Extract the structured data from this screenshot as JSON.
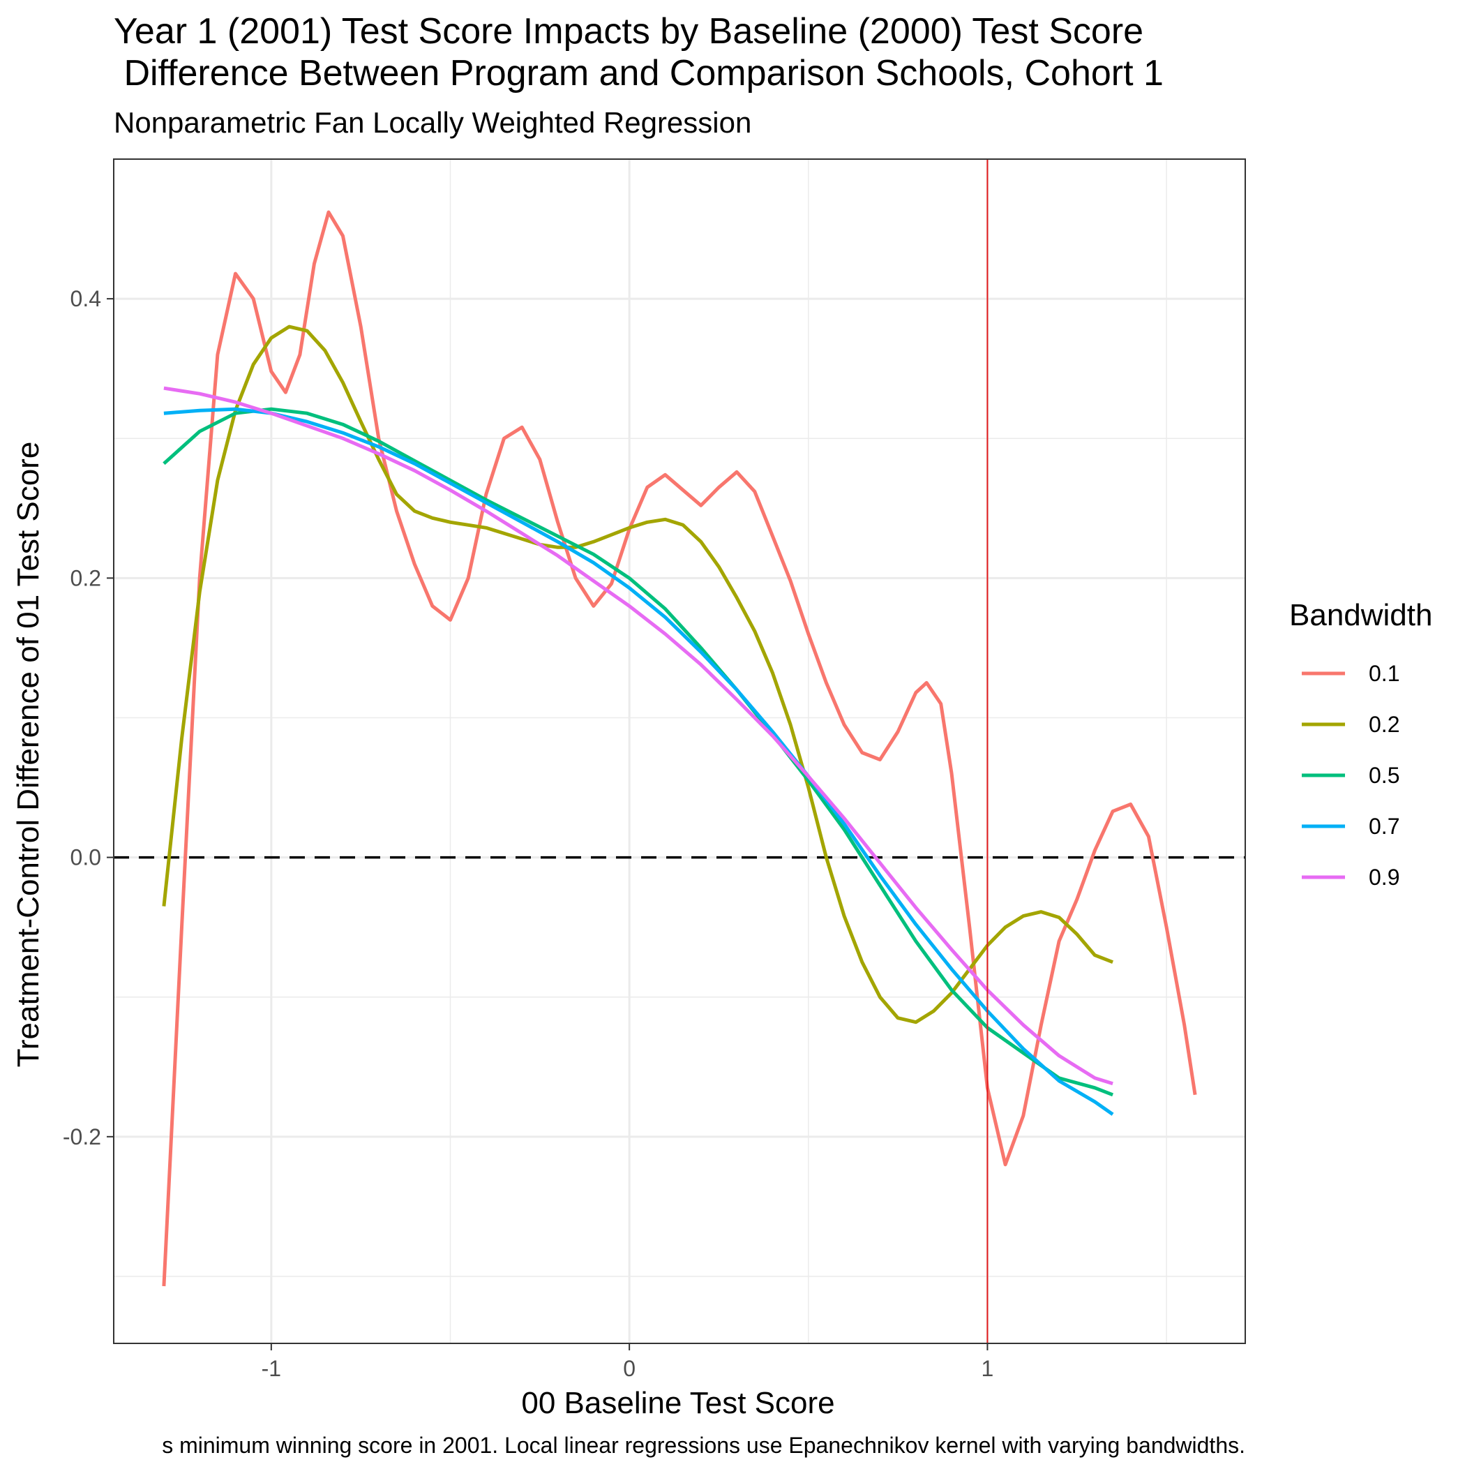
{
  "chart_data": {
    "type": "line",
    "title_line1": "Year 1 (2001) Test Score Impacts by Baseline (2000) Test Score",
    "title_line2": " Difference Between Program and Comparison Schools, Cohort 1",
    "subtitle": "Nonparametric Fan Locally Weighted Regression",
    "xlabel": "00 Baseline Test Score",
    "ylabel": "Treatment-Control Difference of 01 Test Score",
    "caption": "s minimum winning score in 2001. Local linear regressions use Epanechnikov kernel with varying bandwidths.",
    "xlim": [
      -1.44,
      1.72
    ],
    "ylim": [
      -0.348,
      0.5
    ],
    "x_ticks": [
      -1,
      0,
      1
    ],
    "x_tick_labels": [
      "-1",
      "0",
      "1"
    ],
    "y_ticks": [
      -0.2,
      0.0,
      0.2,
      0.4
    ],
    "y_tick_labels": [
      "-0.2",
      "0.0",
      "0.2",
      "0.4"
    ],
    "x_minor_grid": [
      -1.5,
      -0.5,
      0.5,
      1.5
    ],
    "y_minor_grid": [
      -0.3,
      -0.1,
      0.1,
      0.3
    ],
    "grid": true,
    "reference_lines": {
      "horizontal": {
        "y": 0,
        "style": "dashed",
        "color": "#000000"
      },
      "vertical": {
        "x": 1,
        "style": "solid",
        "color": "#e31a1c"
      }
    },
    "legend": {
      "title": "Bandwidth",
      "position": "right"
    },
    "series": [
      {
        "name": "0.1",
        "color": "#F8766D",
        "points": [
          [
            -1.3,
            -0.307
          ],
          [
            -1.25,
            -0.05
          ],
          [
            -1.2,
            0.2
          ],
          [
            -1.15,
            0.36
          ],
          [
            -1.1,
            0.418
          ],
          [
            -1.05,
            0.4
          ],
          [
            -1.0,
            0.348
          ],
          [
            -0.96,
            0.333
          ],
          [
            -0.92,
            0.36
          ],
          [
            -0.88,
            0.425
          ],
          [
            -0.84,
            0.462
          ],
          [
            -0.8,
            0.445
          ],
          [
            -0.75,
            0.38
          ],
          [
            -0.7,
            0.3
          ],
          [
            -0.65,
            0.248
          ],
          [
            -0.6,
            0.21
          ],
          [
            -0.55,
            0.18
          ],
          [
            -0.5,
            0.17
          ],
          [
            -0.45,
            0.2
          ],
          [
            -0.4,
            0.26
          ],
          [
            -0.35,
            0.3
          ],
          [
            -0.3,
            0.308
          ],
          [
            -0.25,
            0.285
          ],
          [
            -0.2,
            0.24
          ],
          [
            -0.15,
            0.2
          ],
          [
            -0.1,
            0.18
          ],
          [
            -0.05,
            0.196
          ],
          [
            0.0,
            0.235
          ],
          [
            0.05,
            0.265
          ],
          [
            0.1,
            0.274
          ],
          [
            0.15,
            0.263
          ],
          [
            0.2,
            0.252
          ],
          [
            0.25,
            0.265
          ],
          [
            0.3,
            0.276
          ],
          [
            0.35,
            0.262
          ],
          [
            0.4,
            0.23
          ],
          [
            0.45,
            0.198
          ],
          [
            0.5,
            0.16
          ],
          [
            0.55,
            0.125
          ],
          [
            0.6,
            0.095
          ],
          [
            0.65,
            0.075
          ],
          [
            0.7,
            0.07
          ],
          [
            0.75,
            0.09
          ],
          [
            0.8,
            0.118
          ],
          [
            0.83,
            0.125
          ],
          [
            0.87,
            0.11
          ],
          [
            0.9,
            0.06
          ],
          [
            0.95,
            -0.05
          ],
          [
            1.0,
            -0.165
          ],
          [
            1.05,
            -0.22
          ],
          [
            1.1,
            -0.185
          ],
          [
            1.15,
            -0.12
          ],
          [
            1.2,
            -0.06
          ],
          [
            1.25,
            -0.03
          ],
          [
            1.3,
            0.005
          ],
          [
            1.35,
            0.033
          ],
          [
            1.4,
            0.038
          ],
          [
            1.45,
            0.015
          ],
          [
            1.5,
            -0.05
          ],
          [
            1.55,
            -0.12
          ],
          [
            1.58,
            -0.17
          ]
        ]
      },
      {
        "name": "0.2",
        "color": "#A3A500",
        "points": [
          [
            -1.3,
            -0.035
          ],
          [
            -1.25,
            0.085
          ],
          [
            -1.2,
            0.19
          ],
          [
            -1.15,
            0.27
          ],
          [
            -1.1,
            0.32
          ],
          [
            -1.05,
            0.353
          ],
          [
            -1.0,
            0.372
          ],
          [
            -0.95,
            0.38
          ],
          [
            -0.9,
            0.377
          ],
          [
            -0.85,
            0.363
          ],
          [
            -0.8,
            0.34
          ],
          [
            -0.75,
            0.312
          ],
          [
            -0.7,
            0.285
          ],
          [
            -0.65,
            0.26
          ],
          [
            -0.6,
            0.248
          ],
          [
            -0.55,
            0.243
          ],
          [
            -0.5,
            0.24
          ],
          [
            -0.45,
            0.238
          ],
          [
            -0.4,
            0.236
          ],
          [
            -0.35,
            0.232
          ],
          [
            -0.3,
            0.228
          ],
          [
            -0.25,
            0.224
          ],
          [
            -0.2,
            0.222
          ],
          [
            -0.15,
            0.222
          ],
          [
            -0.1,
            0.226
          ],
          [
            -0.05,
            0.231
          ],
          [
            0.0,
            0.236
          ],
          [
            0.05,
            0.24
          ],
          [
            0.1,
            0.242
          ],
          [
            0.15,
            0.238
          ],
          [
            0.2,
            0.226
          ],
          [
            0.25,
            0.208
          ],
          [
            0.3,
            0.186
          ],
          [
            0.35,
            0.162
          ],
          [
            0.4,
            0.132
          ],
          [
            0.45,
            0.095
          ],
          [
            0.5,
            0.05
          ],
          [
            0.55,
            0.0
          ],
          [
            0.6,
            -0.042
          ],
          [
            0.65,
            -0.075
          ],
          [
            0.7,
            -0.1
          ],
          [
            0.75,
            -0.115
          ],
          [
            0.8,
            -0.118
          ],
          [
            0.85,
            -0.11
          ],
          [
            0.9,
            -0.097
          ],
          [
            0.95,
            -0.08
          ],
          [
            1.0,
            -0.063
          ],
          [
            1.05,
            -0.05
          ],
          [
            1.1,
            -0.042
          ],
          [
            1.15,
            -0.039
          ],
          [
            1.2,
            -0.043
          ],
          [
            1.25,
            -0.055
          ],
          [
            1.3,
            -0.07
          ],
          [
            1.35,
            -0.075
          ]
        ]
      },
      {
        "name": "0.5",
        "color": "#00BF7D",
        "points": [
          [
            -1.3,
            0.282
          ],
          [
            -1.2,
            0.305
          ],
          [
            -1.1,
            0.318
          ],
          [
            -1.0,
            0.321
          ],
          [
            -0.9,
            0.318
          ],
          [
            -0.8,
            0.31
          ],
          [
            -0.7,
            0.298
          ],
          [
            -0.6,
            0.284
          ],
          [
            -0.5,
            0.27
          ],
          [
            -0.4,
            0.256
          ],
          [
            -0.3,
            0.243
          ],
          [
            -0.2,
            0.23
          ],
          [
            -0.1,
            0.217
          ],
          [
            0.0,
            0.2
          ],
          [
            0.1,
            0.178
          ],
          [
            0.2,
            0.15
          ],
          [
            0.3,
            0.12
          ],
          [
            0.4,
            0.088
          ],
          [
            0.5,
            0.055
          ],
          [
            0.6,
            0.02
          ],
          [
            0.7,
            -0.02
          ],
          [
            0.8,
            -0.06
          ],
          [
            0.9,
            -0.095
          ],
          [
            1.0,
            -0.122
          ],
          [
            1.1,
            -0.14
          ],
          [
            1.2,
            -0.158
          ],
          [
            1.3,
            -0.165
          ],
          [
            1.35,
            -0.17
          ]
        ]
      },
      {
        "name": "0.7",
        "color": "#00B0F6",
        "points": [
          [
            -1.3,
            0.318
          ],
          [
            -1.2,
            0.32
          ],
          [
            -1.1,
            0.321
          ],
          [
            -1.0,
            0.318
          ],
          [
            -0.9,
            0.312
          ],
          [
            -0.8,
            0.304
          ],
          [
            -0.7,
            0.294
          ],
          [
            -0.6,
            0.282
          ],
          [
            -0.5,
            0.268
          ],
          [
            -0.4,
            0.254
          ],
          [
            -0.3,
            0.24
          ],
          [
            -0.2,
            0.226
          ],
          [
            -0.1,
            0.211
          ],
          [
            0.0,
            0.193
          ],
          [
            0.1,
            0.172
          ],
          [
            0.2,
            0.147
          ],
          [
            0.3,
            0.12
          ],
          [
            0.4,
            0.09
          ],
          [
            0.5,
            0.058
          ],
          [
            0.6,
            0.024
          ],
          [
            0.7,
            -0.013
          ],
          [
            0.8,
            -0.048
          ],
          [
            0.9,
            -0.08
          ],
          [
            1.0,
            -0.11
          ],
          [
            1.1,
            -0.137
          ],
          [
            1.2,
            -0.16
          ],
          [
            1.3,
            -0.175
          ],
          [
            1.35,
            -0.184
          ]
        ]
      },
      {
        "name": "0.9",
        "color": "#E76BF3",
        "points": [
          [
            -1.3,
            0.336
          ],
          [
            -1.2,
            0.332
          ],
          [
            -1.1,
            0.326
          ],
          [
            -1.0,
            0.318
          ],
          [
            -0.9,
            0.309
          ],
          [
            -0.8,
            0.3
          ],
          [
            -0.7,
            0.289
          ],
          [
            -0.6,
            0.277
          ],
          [
            -0.5,
            0.263
          ],
          [
            -0.4,
            0.248
          ],
          [
            -0.3,
            0.232
          ],
          [
            -0.2,
            0.216
          ],
          [
            -0.1,
            0.198
          ],
          [
            0.0,
            0.18
          ],
          [
            0.1,
            0.16
          ],
          [
            0.2,
            0.138
          ],
          [
            0.3,
            0.113
          ],
          [
            0.4,
            0.087
          ],
          [
            0.5,
            0.058
          ],
          [
            0.6,
            0.028
          ],
          [
            0.7,
            -0.004
          ],
          [
            0.8,
            -0.036
          ],
          [
            0.9,
            -0.066
          ],
          [
            1.0,
            -0.095
          ],
          [
            1.1,
            -0.12
          ],
          [
            1.2,
            -0.142
          ],
          [
            1.3,
            -0.158
          ],
          [
            1.35,
            -0.162
          ]
        ]
      }
    ]
  }
}
